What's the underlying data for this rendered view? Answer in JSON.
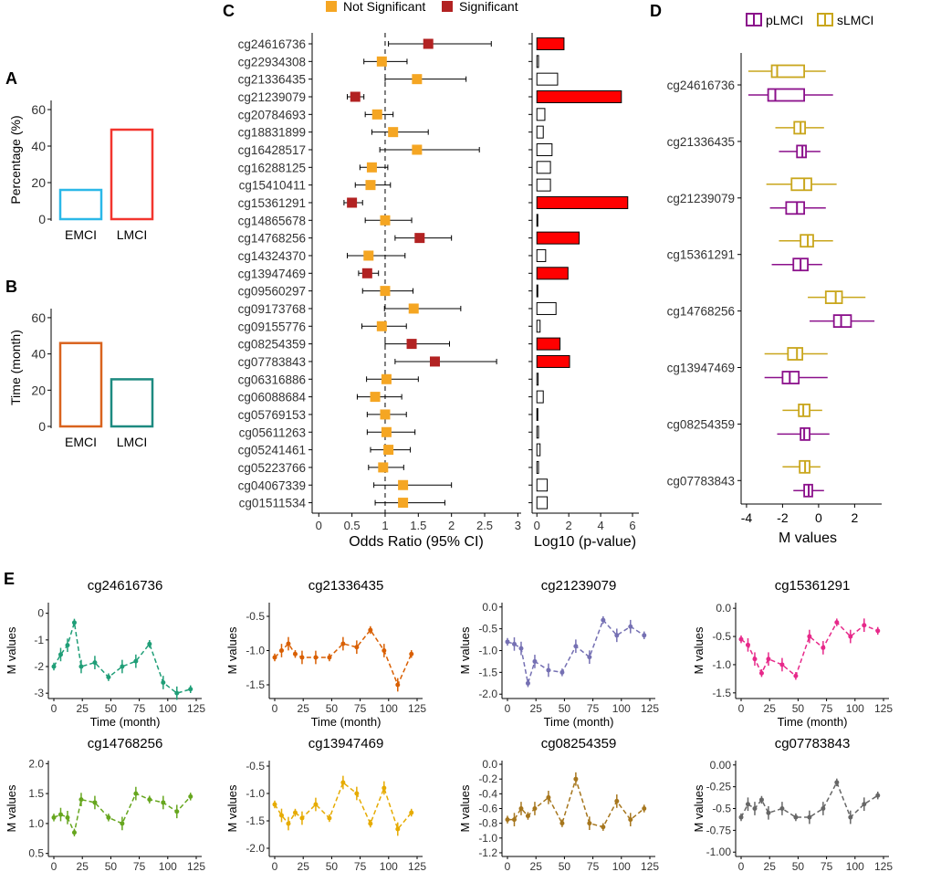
{
  "panels": {
    "A": "A",
    "B": "B",
    "C": "C",
    "D": "D",
    "E": "E"
  },
  "colors": {
    "sig": "#b22222",
    "nonsig": "#f5a623",
    "bar_sig": "#ff0000",
    "pl": "#8b108b",
    "sl": "#c9a61c"
  },
  "chart_data": [
    {
      "id": "A",
      "type": "bar",
      "categories": [
        "EMCI",
        "LMCI"
      ],
      "values": [
        16,
        49
      ],
      "ylabel": "Percentage (%)",
      "yticks": [
        0,
        20,
        40,
        60
      ],
      "ylim": [
        0,
        65
      ],
      "colors": [
        "#2bb8e8",
        "#f2352e"
      ]
    },
    {
      "id": "B",
      "type": "bar",
      "categories": [
        "EMCI",
        "LMCI"
      ],
      "values": [
        46,
        26
      ],
      "ylabel": "Time (month)",
      "yticks": [
        0,
        20,
        40,
        60
      ],
      "ylim": [
        0,
        65
      ],
      "colors": [
        "#d9631e",
        "#1d8a80"
      ]
    },
    {
      "id": "C_forest",
      "type": "scatter",
      "title": "Odds Ratio",
      "xlabel": "Odds Ratio (95% CI)",
      "legend": {
        "nonsig": "Not Significant",
        "sig": "Significant"
      },
      "xticks": [
        0,
        0.5,
        1,
        1.5,
        2,
        2.5,
        3
      ],
      "xlim": [
        -0.1,
        3.05
      ],
      "reference": 1,
      "cpgs": [
        "cg24616736",
        "cg22934308",
        "cg21336435",
        "cg21239079",
        "cg20784693",
        "cg18831899",
        "cg16428517",
        "cg16288125",
        "cg15410411",
        "cg15361291",
        "cg14865678",
        "cg14768256",
        "cg14324370",
        "cg13947469",
        "cg09560297",
        "cg09173768",
        "cg09155776",
        "cg08254359",
        "cg07783843",
        "cg06316886",
        "cg06088684",
        "cg05769153",
        "cg05611263",
        "cg05241461",
        "cg05223766",
        "cg04067339",
        "cg01511534"
      ],
      "or": [
        1.65,
        0.95,
        1.48,
        0.55,
        0.88,
        1.12,
        1.48,
        0.8,
        0.78,
        0.5,
        1.0,
        1.52,
        0.75,
        0.73,
        1.0,
        1.43,
        0.95,
        1.4,
        1.75,
        1.02,
        0.85,
        1.0,
        1.02,
        1.05,
        0.97,
        1.27,
        1.27
      ],
      "lo": [
        1.05,
        0.68,
        1.0,
        0.43,
        0.7,
        0.8,
        0.92,
        0.62,
        0.55,
        0.38,
        0.7,
        1.15,
        0.43,
        0.6,
        0.66,
        0.99,
        0.65,
        1.0,
        1.15,
        0.72,
        0.58,
        0.73,
        0.73,
        0.78,
        0.75,
        0.83,
        0.85
      ],
      "hi": [
        2.6,
        1.33,
        2.22,
        0.68,
        1.12,
        1.65,
        2.42,
        1.04,
        1.08,
        0.66,
        1.4,
        2.0,
        1.3,
        0.9,
        1.42,
        2.14,
        1.32,
        1.97,
        2.68,
        1.5,
        1.25,
        1.32,
        1.45,
        1.38,
        1.28,
        2.0,
        1.9
      ],
      "sig": [
        true,
        false,
        false,
        true,
        false,
        false,
        false,
        false,
        false,
        true,
        false,
        true,
        false,
        true,
        false,
        false,
        false,
        true,
        true,
        false,
        false,
        false,
        false,
        false,
        false,
        false,
        false
      ]
    },
    {
      "id": "C_pval",
      "type": "bar",
      "xlabel": "Log10 (p-value)",
      "xticks": [
        0,
        2,
        4,
        6
      ],
      "xlim": [
        -0.3,
        6.4
      ],
      "values": [
        1.7,
        0.1,
        1.3,
        5.3,
        0.5,
        0.4,
        0.95,
        0.85,
        0.85,
        5.7,
        0.02,
        2.65,
        0.55,
        1.95,
        0.05,
        1.2,
        0.2,
        1.45,
        2.05,
        0.08,
        0.4,
        0.05,
        0.1,
        0.2,
        0.1,
        0.65,
        0.65
      ],
      "sig": [
        true,
        false,
        false,
        true,
        false,
        false,
        false,
        false,
        false,
        true,
        false,
        true,
        false,
        true,
        false,
        false,
        false,
        true,
        true,
        false,
        false,
        false,
        false,
        false,
        false,
        false,
        false
      ]
    },
    {
      "id": "D",
      "type": "boxplot",
      "xlabel": "M values",
      "xticks": [
        -4,
        -2,
        0,
        2
      ],
      "xlim": [
        -4.3,
        3.5
      ],
      "legend": [
        "pLMCI",
        "sLMCI"
      ],
      "cpgs": [
        "cg24616736",
        "cg21336435",
        "cg21239079",
        "cg15361291",
        "cg14768256",
        "cg13947469",
        "cg08254359",
        "cg07783843"
      ],
      "sLMCI": [
        [
          -3.9,
          -2.6,
          -2.3,
          -0.8,
          0.4
        ],
        [
          -2.4,
          -1.35,
          -1.0,
          -0.75,
          0.3
        ],
        [
          -2.9,
          -1.5,
          -0.8,
          -0.4,
          1.0
        ],
        [
          -2.2,
          -1.0,
          -0.6,
          -0.3,
          0.8
        ],
        [
          -0.6,
          0.4,
          0.95,
          1.3,
          2.6
        ],
        [
          -3.0,
          -1.7,
          -1.2,
          -0.9,
          0.5
        ],
        [
          -2.0,
          -1.1,
          -0.85,
          -0.5,
          0.2
        ],
        [
          -2.0,
          -1.05,
          -0.75,
          -0.5,
          0.1
        ]
      ],
      "pLMCI": [
        [
          -3.9,
          -2.8,
          -2.4,
          -0.8,
          0.8
        ],
        [
          -2.2,
          -1.2,
          -0.9,
          -0.7,
          0.1
        ],
        [
          -2.7,
          -1.8,
          -1.2,
          -0.8,
          0.4
        ],
        [
          -2.6,
          -1.4,
          -1.0,
          -0.6,
          0.2
        ],
        [
          -0.5,
          0.85,
          1.25,
          1.8,
          3.1
        ],
        [
          -3.0,
          -2.0,
          -1.6,
          -1.1,
          0.5
        ],
        [
          -2.3,
          -1.0,
          -0.8,
          -0.5,
          0.6
        ],
        [
          -1.4,
          -0.8,
          -0.55,
          -0.35,
          0.3
        ]
      ]
    },
    {
      "id": "E",
      "type": "line",
      "xlabel": "Time (month)",
      "ylabel": "M values",
      "xticks": [
        0,
        25,
        50,
        75,
        100,
        125
      ],
      "x": [
        0,
        6,
        12,
        18,
        24,
        36,
        48,
        60,
        72,
        84,
        96,
        108,
        120
      ],
      "series": [
        {
          "name": "cg24616736",
          "color": "#1f9e77",
          "yticks": [
            0,
            -1,
            -2,
            -3
          ],
          "yrange": [
            -3.2,
            0.4
          ],
          "values": [
            -2.0,
            -1.55,
            -1.2,
            -0.35,
            -2.0,
            -1.85,
            -2.4,
            -2.0,
            -1.8,
            -1.15,
            -2.6,
            -3.0,
            -2.85
          ]
        },
        {
          "name": "cg21336435",
          "color": "#d95f02",
          "yticks": [
            -0.5,
            -1.0,
            -1.5
          ],
          "yrange": [
            -1.7,
            -0.3
          ],
          "values": [
            -1.1,
            -1.0,
            -0.9,
            -1.05,
            -1.1,
            -1.1,
            -1.1,
            -0.9,
            -0.95,
            -0.7,
            -1.0,
            -1.5,
            -1.05
          ]
        },
        {
          "name": "cg21239079",
          "color": "#7570b3",
          "yticks": [
            0.0,
            -0.5,
            -1.0,
            -1.5,
            -2.0
          ],
          "yrange": [
            -2.1,
            0.1
          ],
          "values": [
            -0.8,
            -0.85,
            -0.95,
            -1.75,
            -1.25,
            -1.45,
            -1.5,
            -0.9,
            -1.15,
            -0.3,
            -0.65,
            -0.45,
            -0.65
          ]
        },
        {
          "name": "cg15361291",
          "color": "#e7298a",
          "yticks": [
            0.0,
            -0.5,
            -1.0,
            -1.5
          ],
          "yrange": [
            -1.6,
            0.1
          ],
          "values": [
            -0.55,
            -0.65,
            -0.9,
            -1.15,
            -0.9,
            -1.0,
            -1.2,
            -0.5,
            -0.7,
            -0.25,
            -0.5,
            -0.3,
            -0.4
          ]
        },
        {
          "name": "cg14768256",
          "color": "#66a61e",
          "yticks": [
            2.0,
            1.5,
            1.0,
            0.5
          ],
          "yrange": [
            0.45,
            2.05
          ],
          "values": [
            1.1,
            1.15,
            1.1,
            0.85,
            1.4,
            1.35,
            1.1,
            1.0,
            1.5,
            1.4,
            1.35,
            1.2,
            1.45
          ]
        },
        {
          "name": "cg13947469",
          "color": "#e6ab02",
          "yticks": [
            -0.5,
            -1.0,
            -1.5,
            -2.0
          ],
          "yrange": [
            -2.15,
            -0.4
          ],
          "values": [
            -1.2,
            -1.4,
            -1.55,
            -1.35,
            -1.45,
            -1.2,
            -1.45,
            -0.8,
            -1.0,
            -1.55,
            -0.9,
            -1.65,
            -1.35
          ]
        },
        {
          "name": "cg08254359",
          "color": "#a6761d",
          "yticks": [
            0.0,
            -0.2,
            -0.4,
            -0.6,
            -0.8,
            -1.0,
            -1.2
          ],
          "yrange": [
            -1.25,
            0.05
          ],
          "values": [
            -0.75,
            -0.75,
            -0.6,
            -0.7,
            -0.6,
            -0.45,
            -0.8,
            -0.2,
            -0.8,
            -0.85,
            -0.5,
            -0.75,
            -0.6
          ]
        },
        {
          "name": "cg07783843",
          "color": "#666666",
          "yticks": [
            0.0,
            -0.25,
            -0.5,
            -0.75,
            -1.0
          ],
          "yrange": [
            -1.05,
            0.05
          ],
          "values": [
            -0.6,
            -0.45,
            -0.5,
            -0.4,
            -0.55,
            -0.5,
            -0.6,
            -0.6,
            -0.5,
            -0.2,
            -0.6,
            -0.45,
            -0.35
          ]
        }
      ]
    }
  ]
}
